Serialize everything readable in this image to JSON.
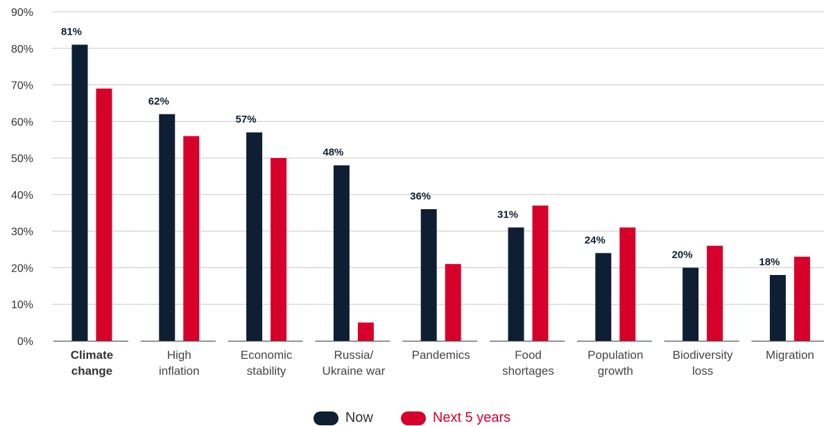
{
  "chart_data": {
    "type": "bar",
    "categories": [
      [
        "Climate",
        "change"
      ],
      [
        "High",
        "inflation"
      ],
      [
        "Economic",
        "stability"
      ],
      [
        "Russia/",
        "Ukraine war"
      ],
      [
        "Pandemics"
      ],
      [
        "Food",
        "shortages"
      ],
      [
        "Population",
        "growth"
      ],
      [
        "Biodiversity",
        "loss"
      ],
      [
        "Migration"
      ]
    ],
    "highlighted_category_index": 0,
    "series": [
      {
        "name": "Now",
        "color": "#0f1f33",
        "values": [
          81,
          62,
          57,
          48,
          36,
          31,
          24,
          20,
          18
        ],
        "data_labels": [
          "81%",
          "62%",
          "57%",
          "48%",
          "36%",
          "31%",
          "24%",
          "20%",
          "18%"
        ]
      },
      {
        "name": "Next 5 years",
        "color": "#d7002a",
        "values": [
          69,
          56,
          50,
          5,
          21,
          37,
          31,
          26,
          23
        ]
      }
    ],
    "ylim": [
      0,
      90
    ],
    "yticks": [
      0,
      10,
      20,
      30,
      40,
      50,
      60,
      70,
      80,
      90
    ],
    "ytick_labels": [
      "0%",
      "10%",
      "20%",
      "30%",
      "40%",
      "50%",
      "60%",
      "70%",
      "80%",
      "90%"
    ],
    "grid": true,
    "legend_position": "bottom-center",
    "title": "",
    "xlabel": "",
    "ylabel": ""
  }
}
